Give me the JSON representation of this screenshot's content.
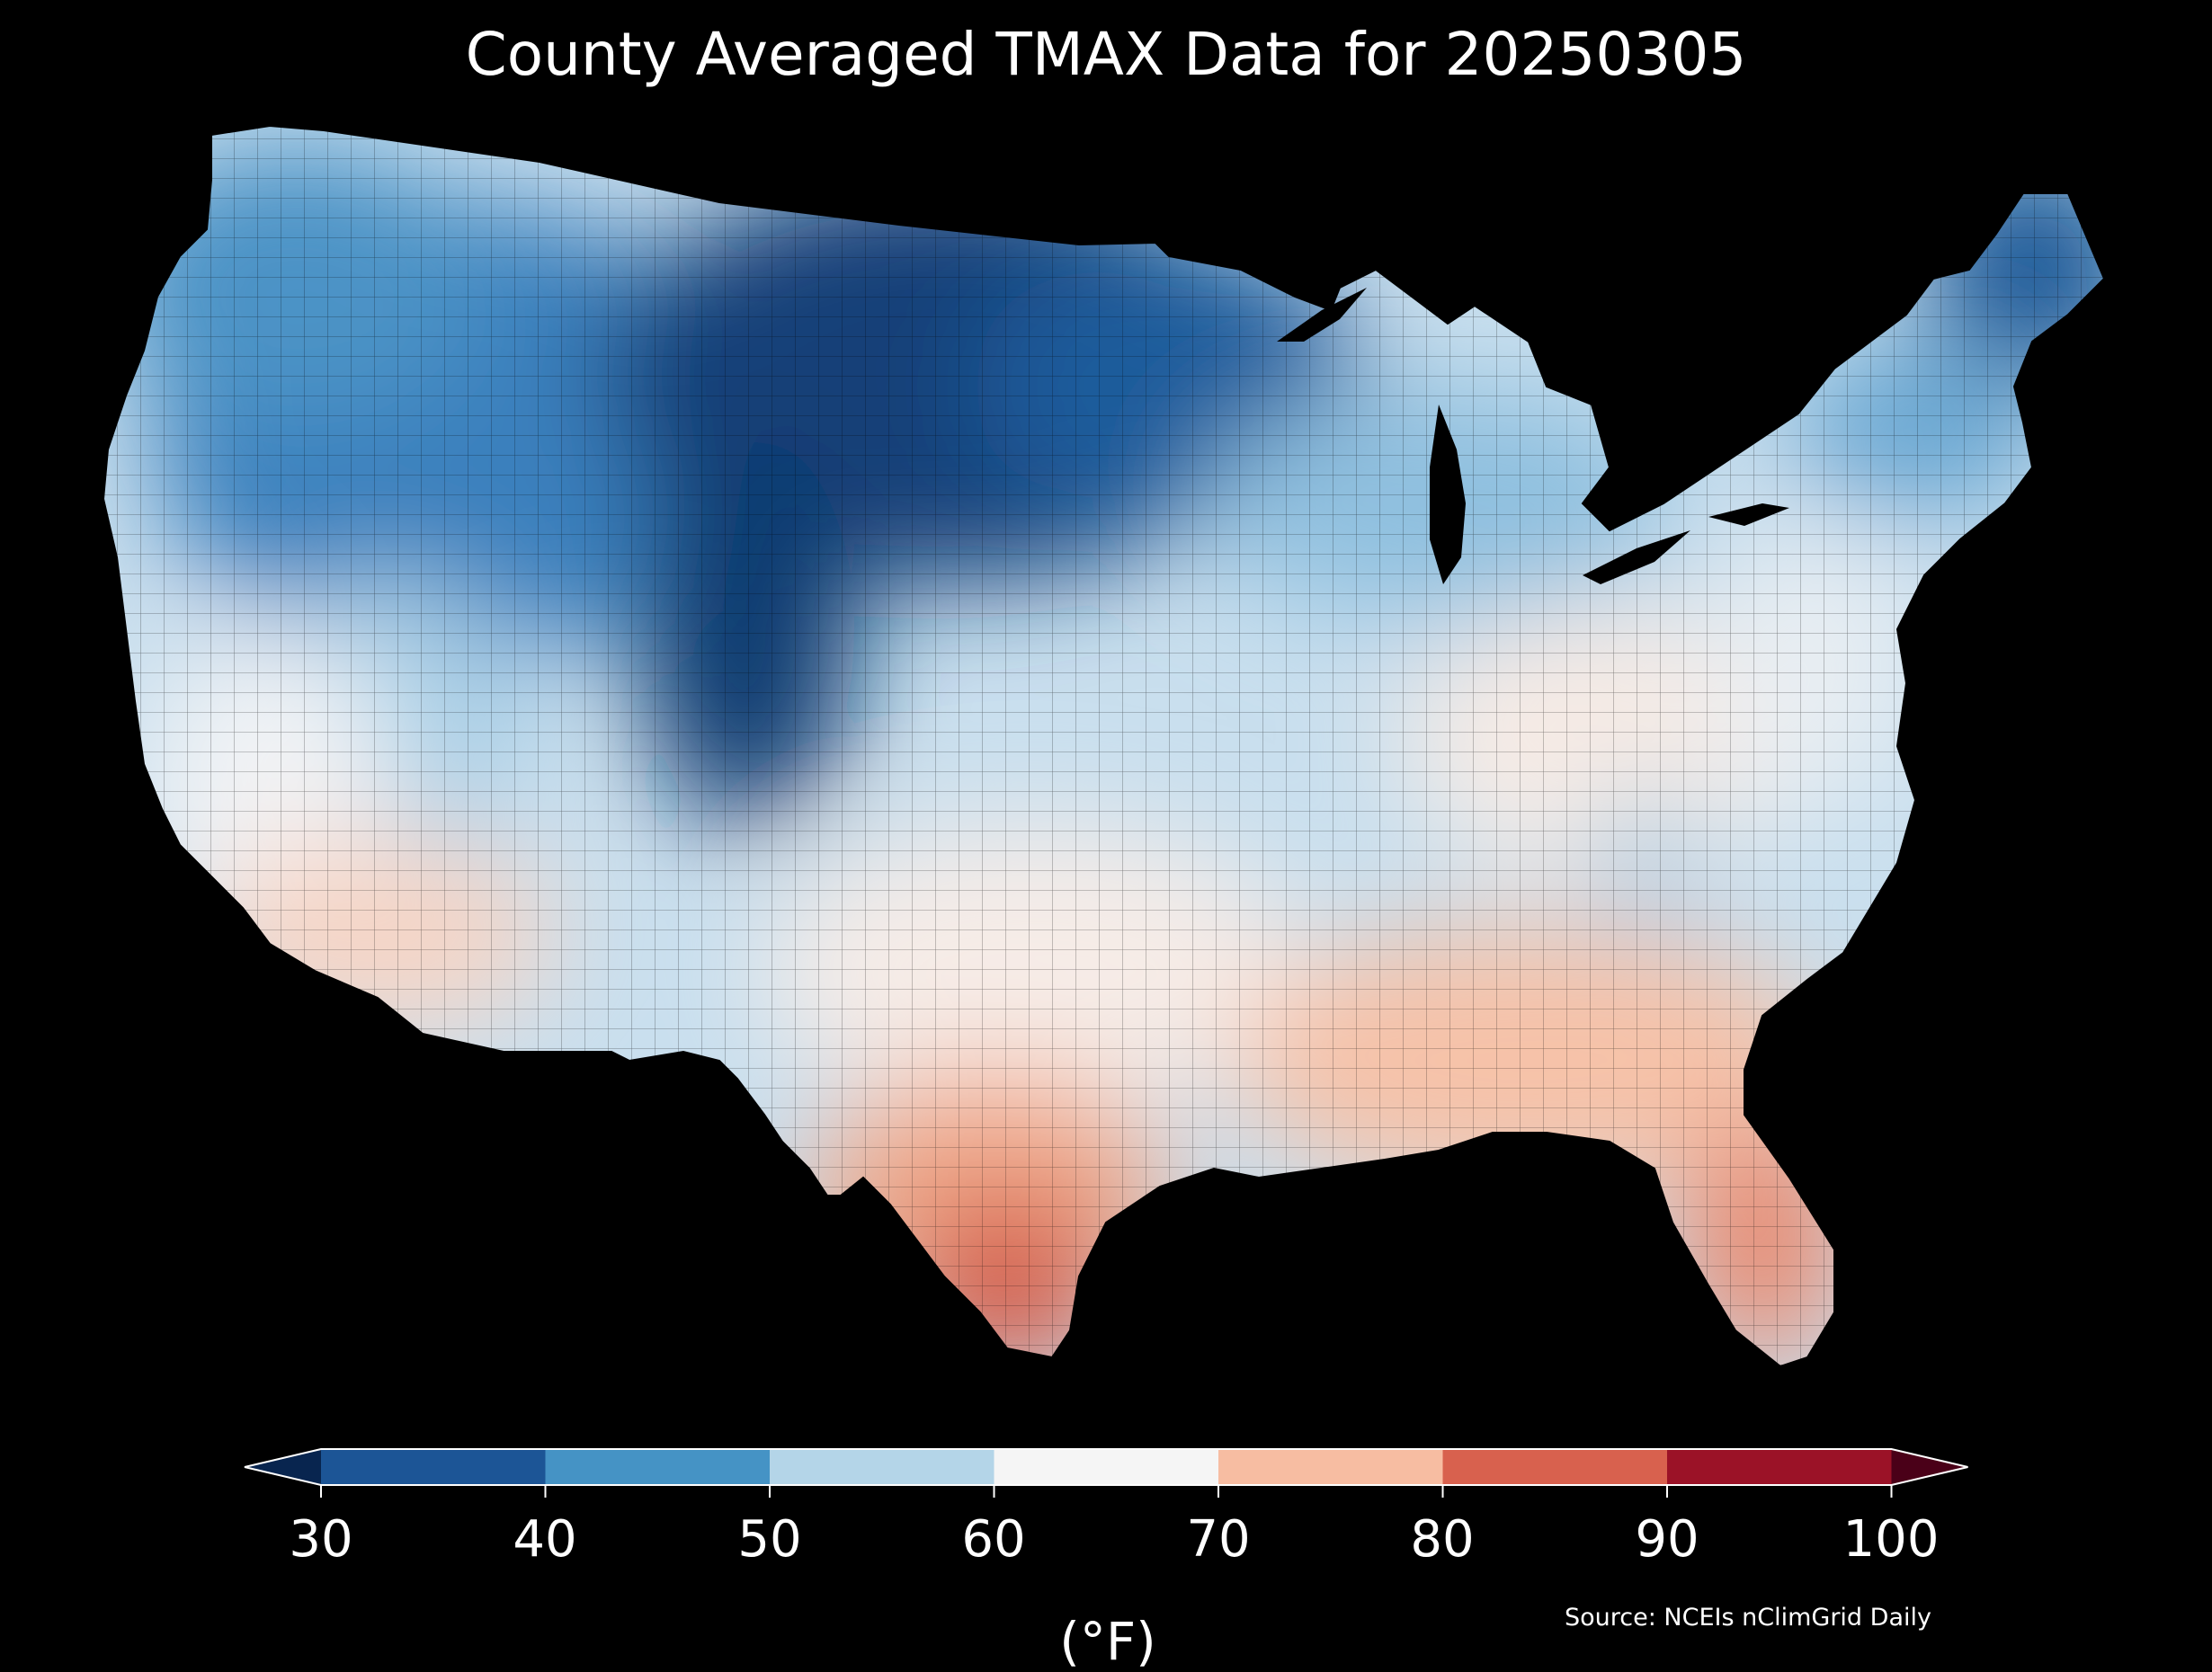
{
  "title": "County Averaged TMAX Data for 20250305",
  "colorbar": {
    "unit": "(°F)",
    "ticks": [
      "30",
      "40",
      "50",
      "60",
      "70",
      "80",
      "90",
      "100"
    ],
    "bins": [
      {
        "range": "<30",
        "color": "#08254f"
      },
      {
        "range": "30-40",
        "color": "#1c5596"
      },
      {
        "range": "40-50",
        "color": "#4593c5"
      },
      {
        "range": "50-60",
        "color": "#b4d5e8"
      },
      {
        "range": "60-70",
        "color": "#f5f5f5"
      },
      {
        "range": "70-80",
        "color": "#f7bda2"
      },
      {
        "range": "80-90",
        "color": "#d8614e"
      },
      {
        "range": "90-100",
        "color": "#9b1227"
      },
      {
        "range": ">100",
        "color": "#4a0018"
      }
    ]
  },
  "source": "Source: NCEIs nClimGrid Daily",
  "regions": [
    {
      "name": "northern-plains",
      "bin": "30-40",
      "color": "#1c5596"
    },
    {
      "name": "pacific-northwest",
      "bin": "40-50",
      "color": "#4593c5"
    },
    {
      "name": "midwest",
      "bin": "50-60",
      "color": "#b4d5e8"
    },
    {
      "name": "southeast",
      "bin": "70-80",
      "color": "#f7bda2"
    },
    {
      "name": "south-texas",
      "bin": "80-90",
      "color": "#d8614e"
    }
  ]
}
